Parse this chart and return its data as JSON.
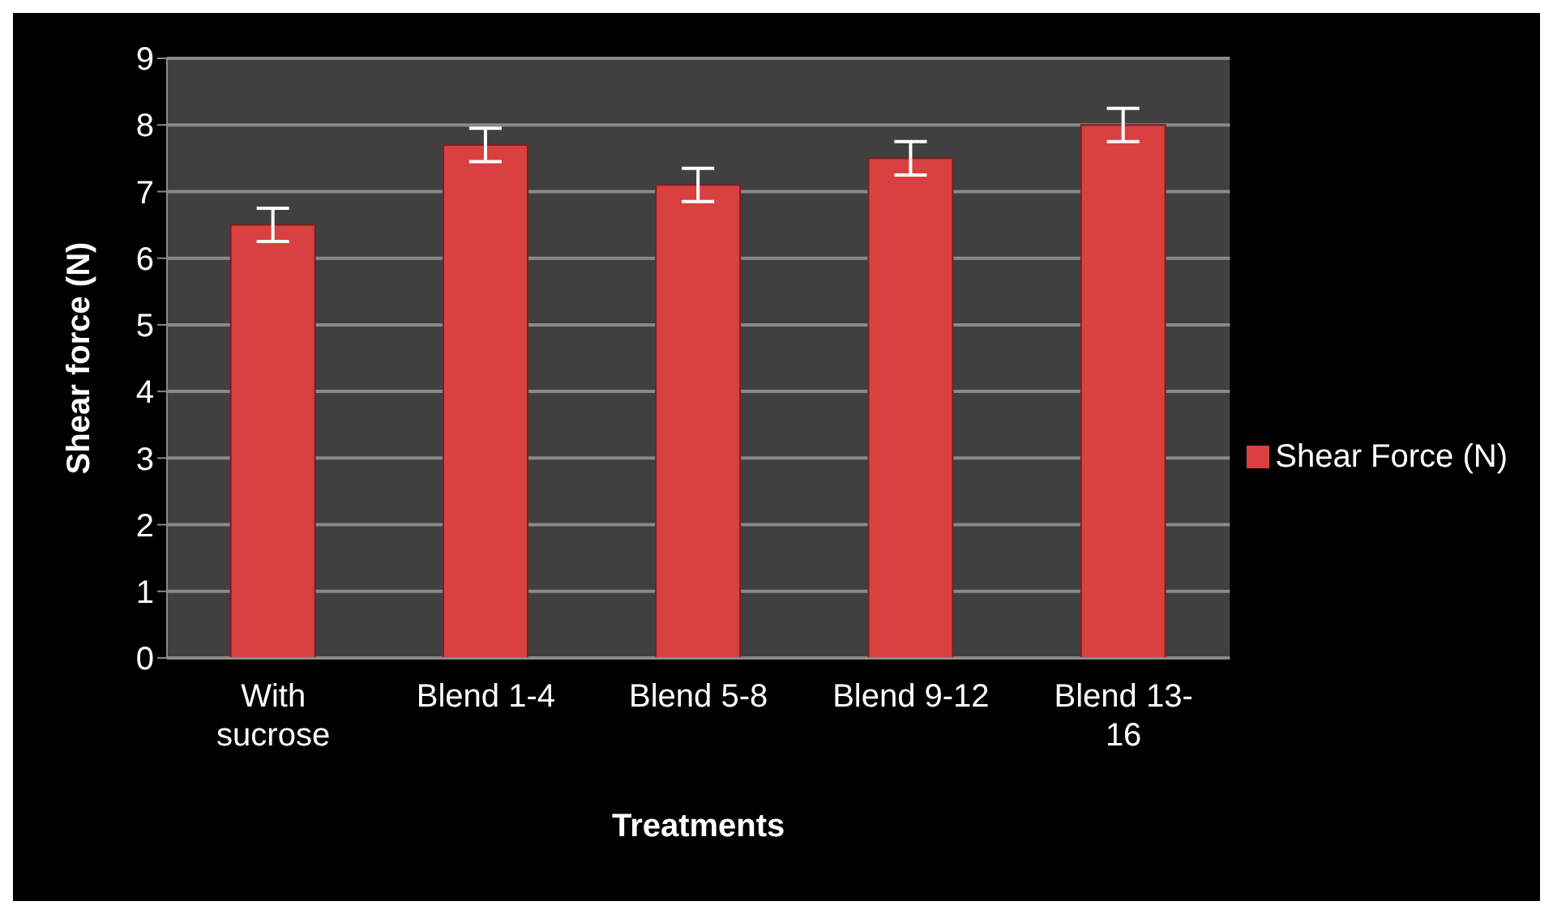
{
  "chart_data": {
    "type": "bar",
    "xlabel": "Treatments",
    "ylabel": "Shear force (N)",
    "categories": [
      "With sucrose",
      "Blend 1-4",
      "Blend 5-8",
      "Blend 9-12",
      "Blend 13-16"
    ],
    "series": [
      {
        "name": "Shear Force (N)",
        "color": "#d94040",
        "values": [
          6.5,
          7.7,
          7.1,
          7.5,
          8.0
        ],
        "errors": [
          0.25,
          0.25,
          0.25,
          0.25,
          0.25
        ]
      }
    ],
    "ylim": [
      0,
      9
    ],
    "yticks": [
      0,
      1,
      2,
      3,
      4,
      5,
      6,
      7,
      8,
      9
    ],
    "grid": "y",
    "legend": "right"
  }
}
